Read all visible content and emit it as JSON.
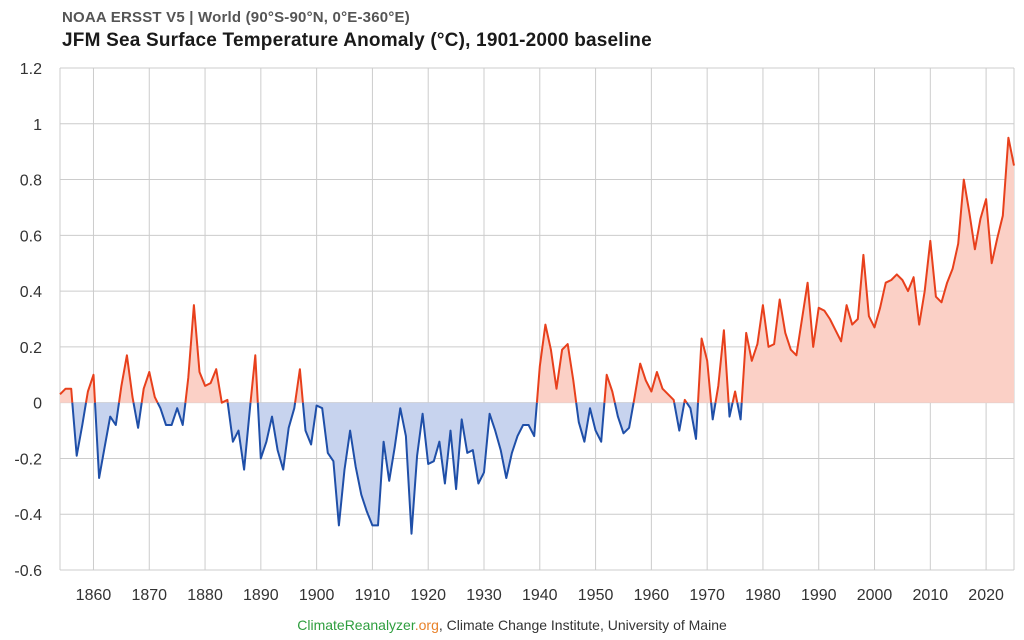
{
  "header": {
    "subtitle": "NOAA ERSST V5 | World (90°S-90°N, 0°E-360°E)",
    "title": "JFM Sea Surface Temperature Anomaly (°C), 1901-2000 baseline"
  },
  "footer": {
    "site_part1": "ClimateReanalyzer",
    "site_part2": ".org",
    "rest": ", Climate Change Institute, University of Maine"
  },
  "colors": {
    "positive_line": "#e8401c",
    "positive_fill": "#fbd0c6",
    "negative_line": "#1f4fa8",
    "negative_fill": "#c7d3ee",
    "grid": "#cccccc",
    "site_part1": "#2e9e3e",
    "site_part2": "#e8822a"
  },
  "chart_data": {
    "type": "area",
    "title": "JFM Sea Surface Temperature Anomaly (°C), 1901-2000 baseline",
    "xlim": [
      1854,
      2025
    ],
    "ylim": [
      -0.6,
      1.2
    ],
    "y_ticks": [
      -0.6,
      -0.4,
      -0.2,
      0,
      0.2,
      0.4,
      0.6,
      0.8,
      1,
      1.2
    ],
    "y_tick_labels": [
      "-0.6",
      "-0.4",
      "-0.2",
      "0",
      "0.2",
      "0.4",
      "0.6",
      "0.8",
      "1",
      "1.2"
    ],
    "x_ticks": [
      1860,
      1870,
      1880,
      1890,
      1900,
      1910,
      1920,
      1930,
      1940,
      1950,
      1960,
      1970,
      1980,
      1990,
      2000,
      2010,
      2020
    ],
    "x_tick_labels": [
      "1860",
      "1870",
      "1880",
      "1890",
      "1900",
      "1910",
      "1920",
      "1930",
      "1940",
      "1950",
      "1960",
      "1970",
      "1980",
      "1990",
      "2000",
      "2010",
      "2020"
    ],
    "grid": true,
    "series": [
      {
        "x": [
          1854,
          1855,
          1856,
          1857,
          1858,
          1859,
          1860,
          1861,
          1862,
          1863,
          1864,
          1865,
          1866,
          1867,
          1868,
          1869,
          1870,
          1871,
          1872,
          1873,
          1874,
          1875,
          1876,
          1877,
          1878,
          1879,
          1880,
          1881,
          1882,
          1883,
          1884,
          1885,
          1886,
          1887,
          1888,
          1889,
          1890,
          1891,
          1892,
          1893,
          1894,
          1895,
          1896,
          1897,
          1898,
          1899,
          1900,
          1901,
          1902,
          1903,
          1904,
          1905,
          1906,
          1907,
          1908,
          1909,
          1910,
          1911,
          1912,
          1913,
          1914,
          1915,
          1916,
          1917,
          1918,
          1919,
          1920,
          1921,
          1922,
          1923,
          1924,
          1925,
          1926,
          1927,
          1928,
          1929,
          1930,
          1931,
          1932,
          1933,
          1934,
          1935,
          1936,
          1937,
          1938,
          1939,
          1940,
          1941,
          1942,
          1943,
          1944,
          1945,
          1946,
          1947,
          1948,
          1949,
          1950,
          1951,
          1952,
          1953,
          1954,
          1955,
          1956,
          1957,
          1958,
          1959,
          1960,
          1961,
          1962,
          1963,
          1964,
          1965,
          1966,
          1967,
          1968,
          1969,
          1970,
          1971,
          1972,
          1973,
          1974,
          1975,
          1976,
          1977,
          1978,
          1979,
          1980,
          1981,
          1982,
          1983,
          1984,
          1985,
          1986,
          1987,
          1988,
          1989,
          1990,
          1991,
          1992,
          1993,
          1994,
          1995,
          1996,
          1997,
          1998,
          1999,
          2000,
          2001,
          2002,
          2003,
          2004,
          2005,
          2006,
          2007,
          2008,
          2009,
          2010,
          2011,
          2012,
          2013,
          2014,
          2015,
          2016,
          2017,
          2018,
          2019,
          2020,
          2021,
          2022,
          2023,
          2024,
          2025
        ],
        "y": [
          0.03,
          0.05,
          0.05,
          -0.19,
          -0.08,
          0.04,
          0.1,
          -0.27,
          -0.16,
          -0.05,
          -0.08,
          0.06,
          0.17,
          0.02,
          -0.09,
          0.05,
          0.11,
          0.02,
          -0.02,
          -0.08,
          -0.08,
          -0.02,
          -0.08,
          0.09,
          0.35,
          0.11,
          0.06,
          0.07,
          0.12,
          0.0,
          0.01,
          -0.14,
          -0.1,
          -0.24,
          -0.03,
          0.17,
          -0.2,
          -0.14,
          -0.05,
          -0.17,
          -0.24,
          -0.09,
          -0.02,
          0.12,
          -0.1,
          -0.15,
          -0.01,
          -0.02,
          -0.18,
          -0.21,
          -0.44,
          -0.24,
          -0.1,
          -0.23,
          -0.33,
          -0.39,
          -0.44,
          -0.44,
          -0.14,
          -0.28,
          -0.16,
          -0.02,
          -0.12,
          -0.47,
          -0.19,
          -0.04,
          -0.22,
          -0.21,
          -0.14,
          -0.29,
          -0.1,
          -0.31,
          -0.06,
          -0.18,
          -0.17,
          -0.29,
          -0.25,
          -0.04,
          -0.1,
          -0.17,
          -0.27,
          -0.18,
          -0.12,
          -0.08,
          -0.08,
          -0.12,
          0.13,
          0.28,
          0.19,
          0.05,
          0.19,
          0.21,
          0.08,
          -0.07,
          -0.14,
          -0.02,
          -0.1,
          -0.14,
          0.1,
          0.04,
          -0.05,
          -0.11,
          -0.09,
          0.02,
          0.14,
          0.08,
          0.04,
          0.11,
          0.05,
          0.03,
          0.01,
          -0.1,
          0.01,
          -0.02,
          -0.13,
          0.23,
          0.15,
          -0.06,
          0.06,
          0.26,
          -0.05,
          0.04,
          -0.06,
          0.25,
          0.15,
          0.21,
          0.35,
          0.2,
          0.21,
          0.37,
          0.25,
          0.19,
          0.17,
          0.3,
          0.43,
          0.2,
          0.34,
          0.33,
          0.3,
          0.26,
          0.22,
          0.35,
          0.28,
          0.3,
          0.53,
          0.31,
          0.27,
          0.34,
          0.43,
          0.44,
          0.46,
          0.44,
          0.4,
          0.45,
          0.28,
          0.4,
          0.58,
          0.38,
          0.36,
          0.43,
          0.48,
          0.57,
          0.8,
          0.68,
          0.55,
          0.66,
          0.73,
          0.5,
          0.59,
          0.67,
          0.95,
          0.85
        ]
      }
    ]
  }
}
